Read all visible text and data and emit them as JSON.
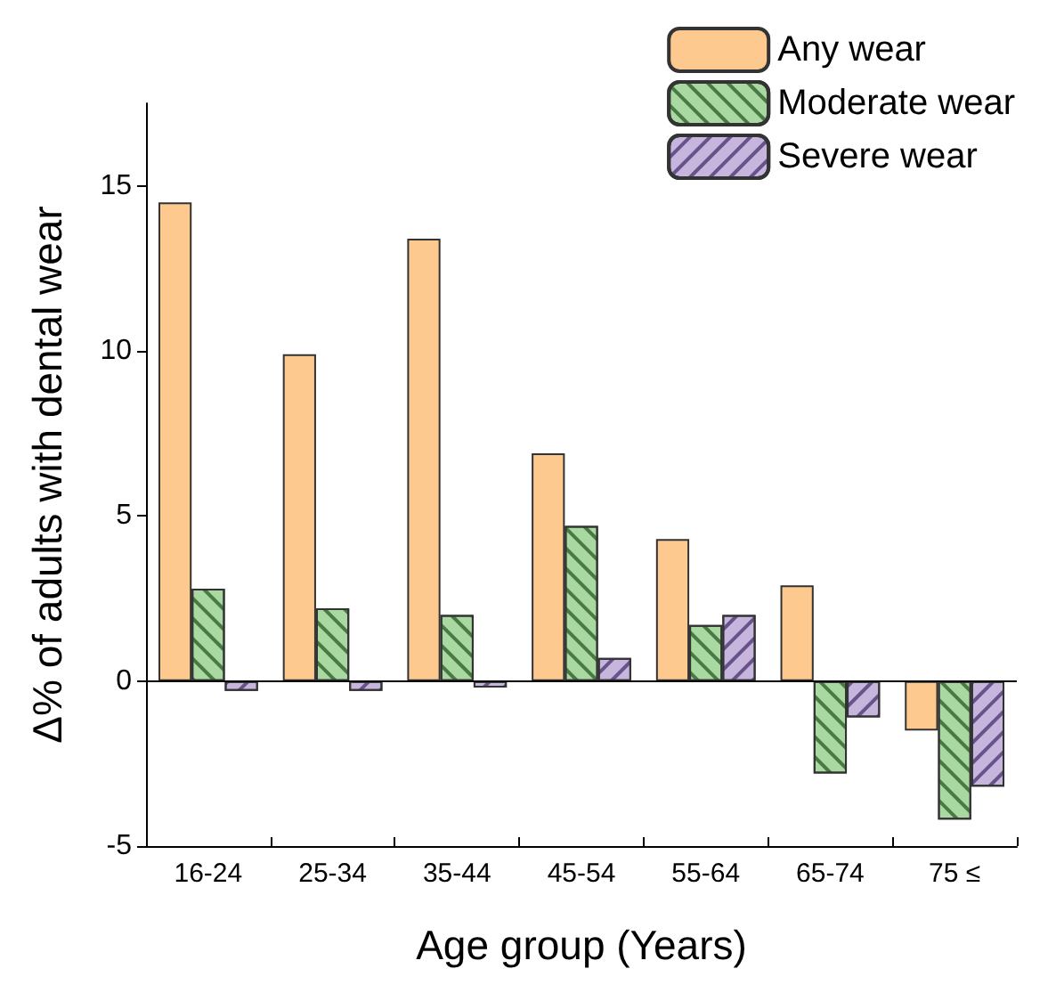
{
  "chart_data": {
    "type": "bar",
    "xlabel": "Age group (Years)",
    "ylabel": "Δ% of adults with dental wear",
    "categories": [
      "16-24",
      "25-34",
      "35-44",
      "45-54",
      "55-64",
      "65-74",
      "75 ≤"
    ],
    "series": [
      {
        "name": "Any wear",
        "color": "#fdc98f",
        "values": [
          14.5,
          9.9,
          13.4,
          6.9,
          4.3,
          2.9,
          -1.5
        ]
      },
      {
        "name": "Moderate wear",
        "color": "#a9d9a0",
        "values": [
          2.8,
          2.2,
          2.0,
          4.7,
          1.7,
          -2.8,
          -4.2
        ]
      },
      {
        "name": "Severe wear",
        "color": "#c6b5dc",
        "values": [
          -0.3,
          -0.3,
          -0.2,
          0.7,
          2.0,
          -1.1,
          -3.2
        ]
      }
    ],
    "ylim": [
      -5,
      17.5
    ],
    "yticks": [
      -5,
      0,
      5,
      10,
      15
    ],
    "grid": false,
    "legend": "top right",
    "ref_lines": [
      {
        "axis": "y",
        "value": 0,
        "label": null
      }
    ]
  }
}
